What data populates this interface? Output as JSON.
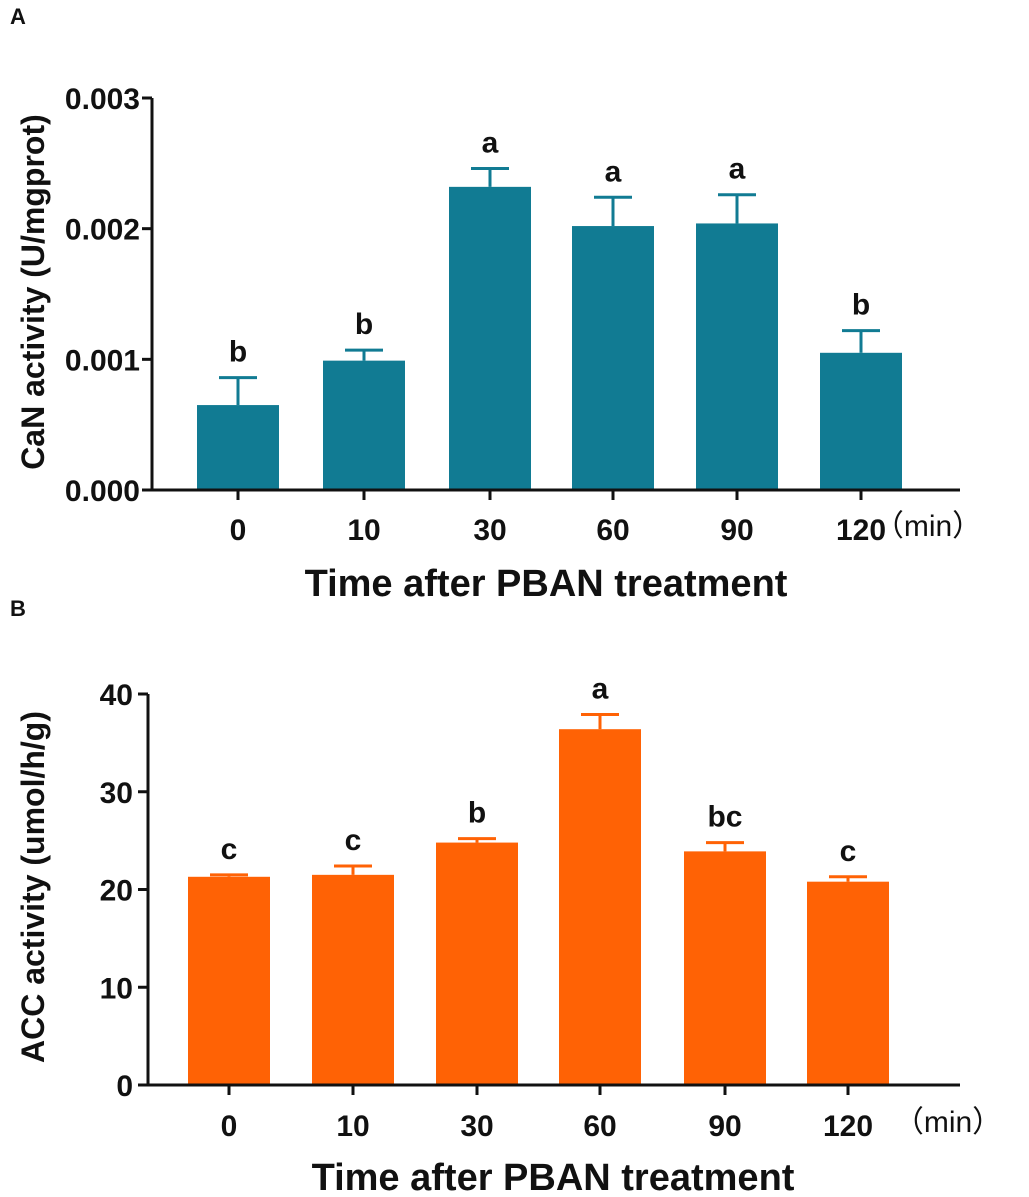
{
  "chart_data": [
    {
      "type": "bar",
      "panel": "A",
      "categories": [
        "0",
        "10",
        "30",
        "60",
        "90",
        "120"
      ],
      "values": [
        0.00065,
        0.00099,
        0.00232,
        0.00202,
        0.00204,
        0.00105
      ],
      "errors": [
        0.00021,
        8e-05,
        0.00014,
        0.00022,
        0.00022,
        0.00017
      ],
      "significance": [
        "b",
        "b",
        "a",
        "a",
        "a",
        "b"
      ],
      "yticks": [
        "0.000",
        "0.001",
        "0.002",
        "0.003"
      ],
      "ytick_values": [
        0,
        0.001,
        0.002,
        0.003
      ],
      "ylim": [
        0,
        0.003
      ],
      "ylabel": "CaN activity (U/mgprot)",
      "xlabel": "Time after PBAN treatment",
      "unit_label": "（min）",
      "bar_color": "#117b93"
    },
    {
      "type": "bar",
      "panel": "B",
      "categories": [
        "0",
        "10",
        "30",
        "60",
        "90",
        "120"
      ],
      "values": [
        21.3,
        21.5,
        24.8,
        36.4,
        23.9,
        20.8
      ],
      "errors": [
        0.2,
        0.9,
        0.4,
        1.5,
        0.9,
        0.5
      ],
      "significance": [
        "c",
        "c",
        "b",
        "a",
        "bc",
        "c"
      ],
      "yticks": [
        "0",
        "10",
        "20",
        "30",
        "40"
      ],
      "ytick_values": [
        0,
        10,
        20,
        30,
        40
      ],
      "ylim": [
        0,
        40
      ],
      "ylabel": "ACC activity (umol/h/g)",
      "xlabel": "Time after PBAN treatment",
      "unit_label": "（min）",
      "bar_color": "#ff6205"
    }
  ]
}
